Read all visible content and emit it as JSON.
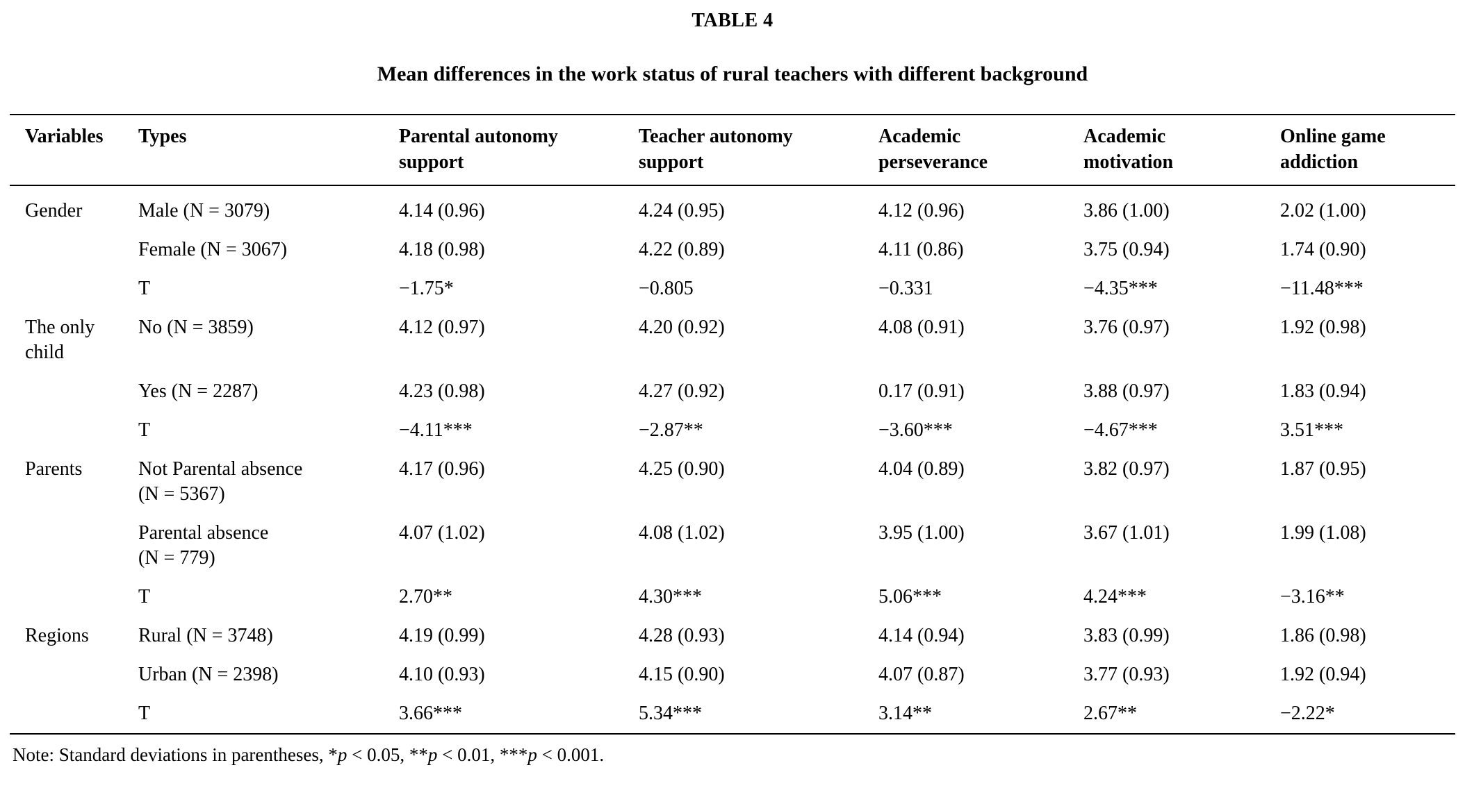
{
  "page": {
    "label": "TABLE 4",
    "title": "Mean differences in the work status of rural teachers with different background"
  },
  "table": {
    "columns": [
      "Variables",
      "Types",
      "Parental autonomy\nsupport",
      "Teacher autonomy\nsupport",
      "Academic\nperseverance",
      "Academic\nmotivation",
      "Online game\naddiction"
    ],
    "rows": [
      {
        "variable": "Gender",
        "type": "Male (N = 3079)",
        "values": [
          "4.14 (0.96)",
          "4.24 (0.95)",
          "4.12 (0.96)",
          "3.86 (1.00)",
          "2.02 (1.00)"
        ]
      },
      {
        "variable": "",
        "type": "Female (N = 3067)",
        "values": [
          "4.18 (0.98)",
          "4.22 (0.89)",
          "4.11 (0.86)",
          "3.75 (0.94)",
          "1.74 (0.90)"
        ]
      },
      {
        "variable": "",
        "type": "T",
        "values": [
          "−1.75*",
          "−0.805",
          "−0.331",
          "−4.35***",
          "−11.48***"
        ]
      },
      {
        "variable": "The only\nchild",
        "type": "No (N = 3859)",
        "values": [
          "4.12 (0.97)",
          "4.20 (0.92)",
          "4.08 (0.91)",
          "3.76 (0.97)",
          "1.92 (0.98)"
        ]
      },
      {
        "variable": "",
        "type": "Yes (N = 2287)",
        "values": [
          "4.23 (0.98)",
          "4.27 (0.92)",
          "0.17 (0.91)",
          "3.88 (0.97)",
          "1.83 (0.94)"
        ]
      },
      {
        "variable": "",
        "type": "T",
        "values": [
          "−4.11***",
          "−2.87**",
          "−3.60***",
          "−4.67***",
          "3.51***"
        ]
      },
      {
        "variable": "Parents",
        "type": "Not Parental absence\n(N = 5367)",
        "values": [
          "4.17 (0.96)",
          "4.25 (0.90)",
          "4.04 (0.89)",
          "3.82 (0.97)",
          "1.87 (0.95)"
        ]
      },
      {
        "variable": "",
        "type": "Parental absence\n(N = 779)",
        "values": [
          "4.07 (1.02)",
          "4.08 (1.02)",
          "3.95 (1.00)",
          "3.67 (1.01)",
          "1.99 (1.08)"
        ]
      },
      {
        "variable": "",
        "type": "T",
        "values": [
          "2.70**",
          "4.30***",
          "5.06***",
          "4.24***",
          "−3.16**"
        ]
      },
      {
        "variable": "Regions",
        "type": "Rural (N = 3748)",
        "values": [
          "4.19 (0.99)",
          "4.28 (0.93)",
          "4.14 (0.94)",
          "3.83 (0.99)",
          "1.86 (0.98)"
        ]
      },
      {
        "variable": "",
        "type": "Urban (N = 2398)",
        "values": [
          "4.10 (0.93)",
          "4.15 (0.90)",
          "4.07 (0.87)",
          "3.77 (0.93)",
          "1.92 (0.94)"
        ]
      },
      {
        "variable": "",
        "type": "T",
        "values": [
          "3.66***",
          "5.34***",
          "3.14**",
          "2.67**",
          "−2.22*"
        ]
      }
    ]
  },
  "note_parts": [
    {
      "t": "Note: Standard deviations in parentheses, *"
    },
    {
      "t": "p",
      "i": true
    },
    {
      "t": " < 0.05, **"
    },
    {
      "t": "p",
      "i": true
    },
    {
      "t": " < 0.01, ***"
    },
    {
      "t": "p",
      "i": true
    },
    {
      "t": " < 0.001."
    }
  ]
}
